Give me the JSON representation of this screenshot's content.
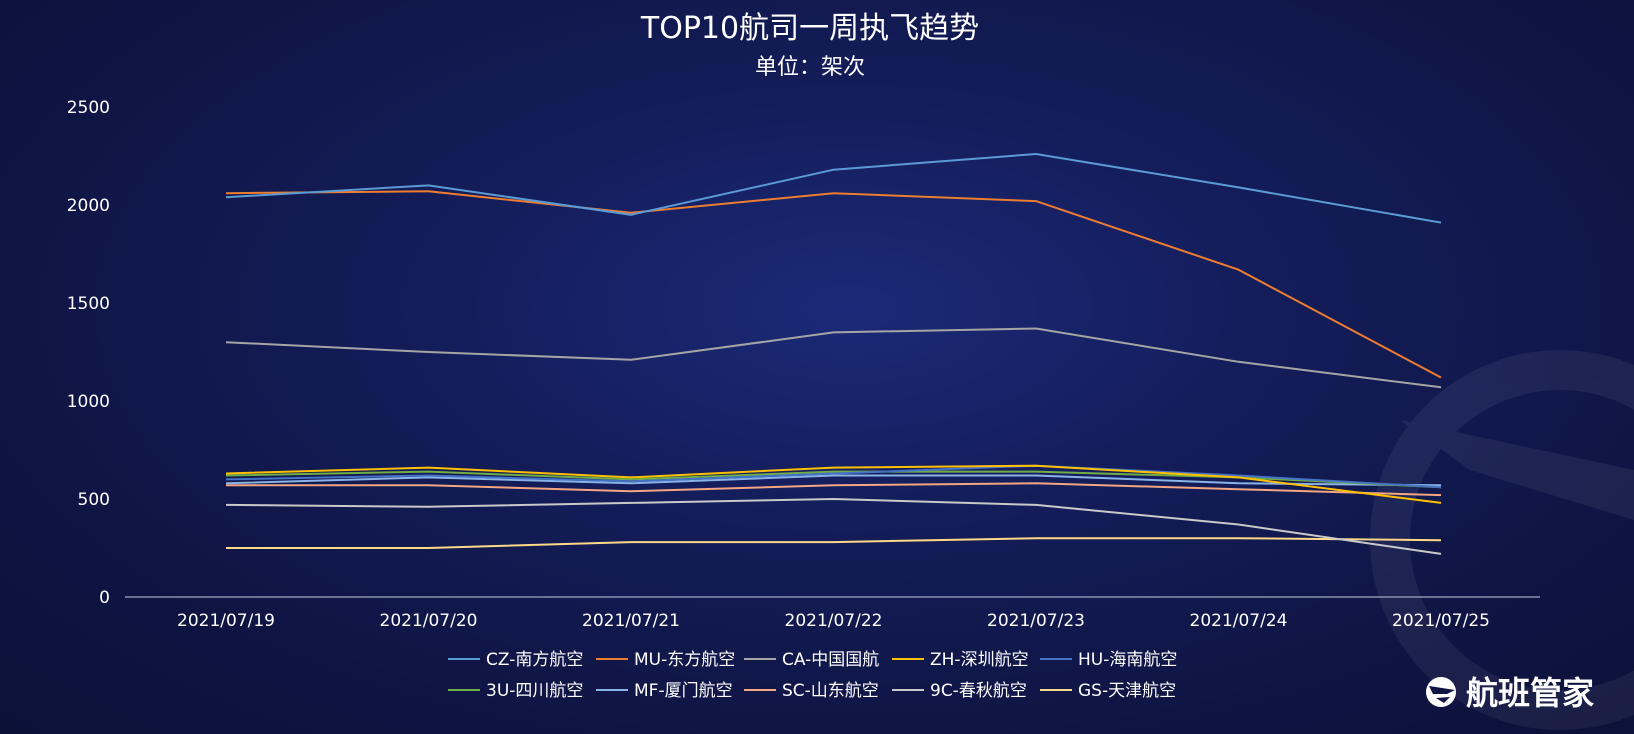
{
  "chart_data": {
    "type": "line",
    "title": "TOP10航司一周执飞趋势",
    "subtitle": "单位：架次",
    "xlabel": "",
    "ylabel": "",
    "categories": [
      "2021/07/19",
      "2021/07/20",
      "2021/07/21",
      "2021/07/22",
      "2021/07/23",
      "2021/07/24",
      "2021/07/25"
    ],
    "ylim": [
      0,
      2500
    ],
    "yticks": [
      "0",
      "500",
      "1000",
      "1500",
      "2000",
      "2500"
    ],
    "grid": false,
    "legend_position": "bottom-center",
    "series": [
      {
        "name": "CZ-南方航空",
        "color": "#5b9bd5",
        "values": [
          2040,
          2100,
          1950,
          2180,
          2260,
          2090,
          1910
        ]
      },
      {
        "name": "MU-东方航空",
        "color": "#ed7d31",
        "values": [
          2060,
          2070,
          1960,
          2060,
          2020,
          1670,
          1120
        ]
      },
      {
        "name": "CA-中国国航",
        "color": "#a5a5a5",
        "values": [
          1300,
          1250,
          1210,
          1350,
          1370,
          1200,
          1070
        ]
      },
      {
        "name": "ZH-深圳航空",
        "color": "#ffc000",
        "values": [
          630,
          660,
          610,
          660,
          670,
          610,
          480
        ]
      },
      {
        "name": "HU-海南航空",
        "color": "#4472c4",
        "values": [
          600,
          620,
          590,
          630,
          670,
          620,
          560
        ]
      },
      {
        "name": "3U-四川航空",
        "color": "#70ad47",
        "values": [
          620,
          640,
          600,
          640,
          640,
          610,
          560
        ]
      },
      {
        "name": "MF-厦门航空",
        "color": "#8ab4e8",
        "values": [
          580,
          610,
          580,
          620,
          620,
          580,
          570
        ]
      },
      {
        "name": "SC-山东航空",
        "color": "#f4a582",
        "values": [
          570,
          570,
          540,
          570,
          580,
          550,
          520
        ]
      },
      {
        "name": "9C-春秋航空",
        "color": "#c9c9c9",
        "values": [
          470,
          460,
          480,
          500,
          470,
          370,
          220
        ]
      },
      {
        "name": "GS-天津航空",
        "color": "#ffd98a",
        "values": [
          250,
          250,
          280,
          280,
          300,
          300,
          290
        ]
      }
    ]
  },
  "brand": {
    "name": "航班管家",
    "logo_icon": "flight-manager-logo-icon"
  }
}
